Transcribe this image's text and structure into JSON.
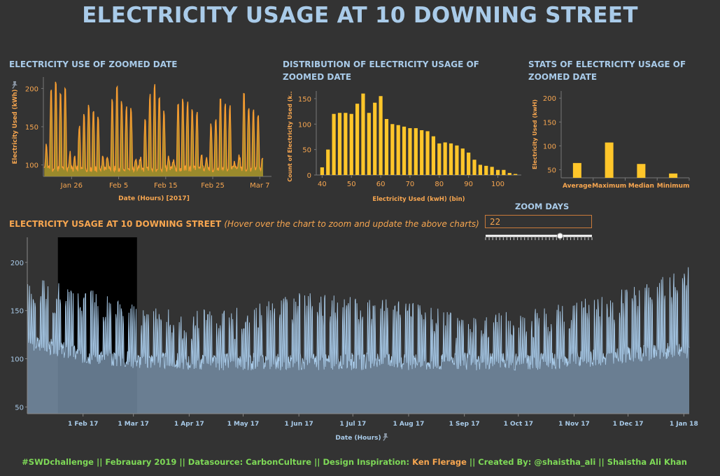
{
  "page": {
    "title": "ELECTRICITY USAGE AT 10 DOWNING STREET"
  },
  "panels": {
    "zoomed_use_title": "ELECTRICITY USE OF ZOOMED DATE",
    "distribution_title": "DISTRIBUTION OF ELECTRICITY  USAGE OF ZOOMED DATE",
    "stats_title": "STATS OF ELECTRICITY USAGE OF ZOOMED DATE",
    "main_title": "ELECTRICITY USAGE AT 10 DOWNING STREET",
    "main_hint": "(Hover over the chart to zoom and update the above charts)"
  },
  "zoom": {
    "label": "ZOOM DAYS",
    "value": "22",
    "slider_fraction": 0.7
  },
  "footer": {
    "part1": "#SWDchallenge  ||  Febrauary 2019  ||  Datasource: CarbonCulture  ||  Design Inspiration:",
    "inspiration": "Ken Flerage",
    "part2": "|| Created By: @shaistha_ali  || Shaistha Ali Khan"
  },
  "colors": {
    "background": "#333333",
    "title_blue": "#a9cbe9",
    "orange": "#f7a650",
    "bar_yellow": "#ffc62a",
    "area_fill": "#a08f2c",
    "area_line": "#f59c30",
    "main_area": "#748ca3",
    "main_line": "#a9cbe9",
    "highlight": "#000000",
    "footer_green": "#7ed957"
  },
  "chart_data": [
    {
      "id": "zoomed-area",
      "type": "area",
      "title": "ELECTRICITY USE OF ZOOMED DATE",
      "xlabel": "Date (Hours) [2017]",
      "ylabel": "Electricity Used (kWh)",
      "x_range": [
        "2017-01-19",
        "2017-03-08"
      ],
      "x_ticks": [
        "Jan 26",
        "Feb 5",
        "Feb 15",
        "Feb 25",
        "Mar 7"
      ],
      "x_tick_days": [
        7,
        17,
        27,
        37,
        47
      ],
      "y_ticks": [
        100,
        150,
        200
      ],
      "ylim": [
        85,
        215
      ],
      "x_days": [
        1,
        48
      ],
      "daily_peaks": [
        125,
        195,
        210,
        190,
        200,
        115,
        110,
        150,
        165,
        175,
        170,
        160,
        108,
        112,
        185,
        200,
        180,
        175,
        170,
        110,
        108,
        155,
        190,
        205,
        185,
        170,
        112,
        108,
        175,
        185,
        180,
        170,
        165,
        110,
        108,
        150,
        160,
        185,
        180,
        175,
        105,
        110,
        190,
        175,
        170,
        165,
        110
      ],
      "baseline": 95
    },
    {
      "id": "distribution",
      "type": "bar",
      "title": "DISTRIBUTION OF ELECTRICITY  USAGE OF ZOOMED DATE",
      "xlabel": "Electricity Used (kwH) (bin)",
      "ylabel": "Count of Electricity Used (k..",
      "categories": [
        40,
        42,
        44,
        46,
        48,
        50,
        52,
        54,
        56,
        58,
        60,
        62,
        64,
        66,
        68,
        70,
        72,
        74,
        76,
        78,
        80,
        82,
        84,
        86,
        88,
        90,
        92,
        94,
        96,
        98,
        100,
        102,
        104,
        106
      ],
      "values": [
        15,
        50,
        120,
        122,
        122,
        120,
        140,
        160,
        122,
        142,
        155,
        110,
        100,
        98,
        95,
        92,
        92,
        88,
        86,
        76,
        62,
        64,
        62,
        58,
        52,
        44,
        30,
        20,
        18,
        16,
        10,
        10,
        4,
        2
      ],
      "x_ticks": [
        40,
        50,
        60,
        70,
        80,
        90,
        100
      ],
      "y_ticks": [
        0,
        50,
        100,
        150
      ],
      "ylim": [
        0,
        165
      ]
    },
    {
      "id": "stats",
      "type": "bar",
      "title": "STATS OF ELECTRICITY USAGE OF ZOOMED DATE",
      "ylabel": "Electricity Used (kwH)",
      "categories": [
        "Average",
        "Maximum",
        "Median",
        "Minimum"
      ],
      "values": [
        64,
        107,
        62,
        42
      ],
      "y_ticks": [
        50,
        100,
        150,
        200
      ],
      "ylim": [
        33,
        215
      ]
    },
    {
      "id": "main-series",
      "type": "area",
      "title": "ELECTRICITY USAGE AT 10 DOWNING STREET",
      "xlabel": "Date (Hours)",
      "x_ticks": [
        "1 Feb 17",
        "1 Mar 17",
        "1 Apr 17",
        "1 May 17",
        "1 Jun 17",
        "1 Jul 17",
        "1 Aug 17",
        "1 Sep 17",
        "1 Oct 17",
        "1 Nov 17",
        "1 Dec 17",
        "1 Jan 18"
      ],
      "x_tick_days": [
        31,
        59,
        90,
        120,
        151,
        181,
        212,
        243,
        273,
        304,
        334,
        365
      ],
      "x_days": [
        0,
        368
      ],
      "y_ticks": [
        50,
        100,
        150,
        200
      ],
      "ylim": [
        43,
        226
      ],
      "highlight_days": [
        17,
        61
      ],
      "monthly_peak_levels": [
        185,
        175,
        155,
        150,
        155,
        170,
        165,
        160,
        145,
        150,
        160,
        175,
        195
      ],
      "baseline_levels": [
        110,
        95,
        90,
        88,
        88,
        88,
        88,
        88,
        88,
        88,
        90,
        95,
        100
      ]
    }
  ]
}
